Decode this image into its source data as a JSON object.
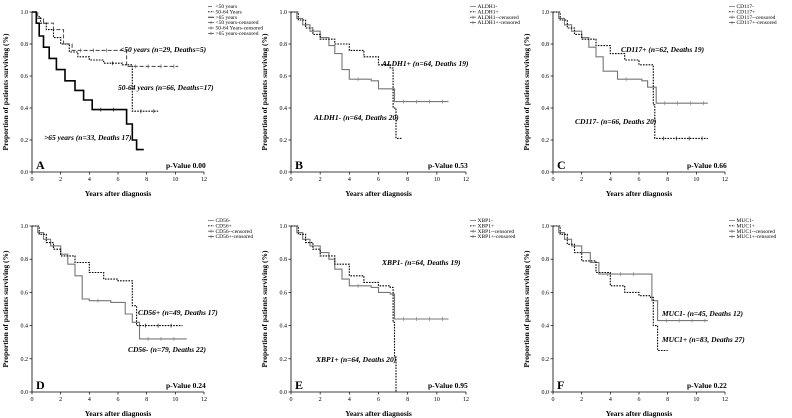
{
  "figure": {
    "panels": [
      {
        "letter": "A",
        "pvalue": "p-Value 0.00",
        "ylabel": "Proportion of patients surviving (%)",
        "xlabel": "Years after diagnosis",
        "legend": [
          "<50 years",
          "50-64 Years",
          ">65 years",
          "<50 years-censored",
          "50-64 Years-censored",
          ">65 years-censored"
        ],
        "annotations": [
          "<50 years (n=29, Deaths=5)",
          "50-64 years (n=66, Deaths=17)",
          ">65 years (n=33, Deaths 17)"
        ]
      },
      {
        "letter": "B",
        "pvalue": "p-Value 0.53",
        "ylabel": "Proportion of patients surviving (%)",
        "xlabel": "Years after diagnosis",
        "legend": [
          "ALDH1-",
          "ALDH1+",
          "ALDH1--censored",
          "ALDH1+-censored"
        ],
        "annotations": [
          "ALDH1+ (n=64, Deaths 19)",
          "ALDH1- (n=64, Deaths 20)"
        ]
      },
      {
        "letter": "C",
        "pvalue": "p-Value 0.66",
        "ylabel": "Proportion of patients surviving (%)",
        "xlabel": "Years after diagnosis",
        "legend": [
          "CD117-",
          "CD117+",
          "CD117--censored",
          "CD117+-censored"
        ],
        "annotations": [
          "CD117+ (n=62, Deaths 19)",
          "CD117- (n=66, Deaths 20)"
        ]
      },
      {
        "letter": "D",
        "pvalue": "p-Value 0.24",
        "ylabel": "Proportion of patients surviving (%)",
        "xlabel": "Years after diagnosis",
        "legend": [
          "CD56-",
          "CD56+",
          "CD56--censored",
          "CD56+-censored"
        ],
        "annotations": [
          "CD56+ (n=49, Deaths 17)",
          "CD56- (n=79, Deaths 22)"
        ]
      },
      {
        "letter": "E",
        "pvalue": "p-Value 0.95",
        "ylabel": "Proportion of patients surviving (%)",
        "xlabel": "Years after diagnosis",
        "legend": [
          "XBP1-",
          "XBP1+",
          "XBP1--censored",
          "XBP1+-censored"
        ],
        "annotations": [
          "XBP1- (n=64, Deaths 19)",
          "XBP1+ (n=64, Deaths 20)"
        ]
      },
      {
        "letter": "F",
        "pvalue": "p-Value 0.22",
        "ylabel": "Proportion of patients surviving (%)",
        "xlabel": "Years after diagnosis",
        "legend": [
          "MUC1-",
          "MUC1+",
          "MUC1--censored",
          "MUC1+-censored"
        ],
        "annotations": [
          "MUC1- (n=45, Deaths 12)",
          "MUC1+ (n=83, Deaths 27)"
        ]
      }
    ]
  },
  "chart_data": [
    {
      "type": "line",
      "xlim": [
        0,
        12
      ],
      "ylim": [
        0,
        1.0
      ],
      "grid": false,
      "legend_position": "top-right",
      "xticks": [
        0,
        2,
        4,
        6,
        8,
        10,
        12
      ],
      "yticks": [
        0,
        0.2,
        0.4,
        0.6,
        0.8,
        1.0
      ],
      "series": [
        {
          "name": "<50 years",
          "style": "dashed",
          "color": "#555555",
          "points": [
            [
              0,
              1.0
            ],
            [
              0.4,
              0.96
            ],
            [
              0.8,
              0.93
            ],
            [
              1.5,
              0.89
            ],
            [
              2.2,
              0.8
            ],
            [
              2.8,
              0.76
            ],
            [
              6.2,
              0.76
            ],
            [
              6.6,
              0.66
            ],
            [
              10.2,
              0.66
            ]
          ]
        },
        {
          "name": "50-64 Years",
          "style": "dotted",
          "color": "#000000",
          "points": [
            [
              0,
              1.0
            ],
            [
              0.3,
              0.97
            ],
            [
              0.6,
              0.93
            ],
            [
              1.0,
              0.89
            ],
            [
              1.5,
              0.84
            ],
            [
              2.0,
              0.8
            ],
            [
              2.6,
              0.75
            ],
            [
              3.2,
              0.72
            ],
            [
              4.0,
              0.7
            ],
            [
              5.0,
              0.68
            ],
            [
              6.3,
              0.67
            ],
            [
              6.9,
              0.67
            ],
            [
              7.0,
              0.38
            ],
            [
              8.8,
              0.38
            ]
          ]
        },
        {
          "name": ">65 years",
          "style": "solid",
          "color": "#000000",
          "points": [
            [
              0,
              1.0
            ],
            [
              0.3,
              0.93
            ],
            [
              0.5,
              0.85
            ],
            [
              0.8,
              0.78
            ],
            [
              1.2,
              0.71
            ],
            [
              1.7,
              0.64
            ],
            [
              2.3,
              0.57
            ],
            [
              3.0,
              0.51
            ],
            [
              3.6,
              0.45
            ],
            [
              4.2,
              0.39
            ],
            [
              6.2,
              0.39
            ],
            [
              6.6,
              0.3
            ],
            [
              7.0,
              0.2
            ],
            [
              7.3,
              0.14
            ],
            [
              7.8,
              0.14
            ]
          ]
        }
      ]
    },
    {
      "type": "line",
      "xlim": [
        0,
        12
      ],
      "ylim": [
        0,
        1.0
      ],
      "grid": false,
      "legend_position": "top-right",
      "xticks": [
        0,
        2,
        4,
        6,
        8,
        10,
        12
      ],
      "yticks": [
        0,
        0.2,
        0.4,
        0.6,
        0.8,
        1.0
      ],
      "series": [
        {
          "name": "ALDH1-",
          "style": "solid",
          "color": "#777777",
          "points": [
            [
              0,
              1.0
            ],
            [
              0.4,
              0.96
            ],
            [
              0.8,
              0.92
            ],
            [
              1.3,
              0.88
            ],
            [
              2.0,
              0.84
            ],
            [
              2.6,
              0.79
            ],
            [
              3.0,
              0.74
            ],
            [
              3.5,
              0.64
            ],
            [
              4.0,
              0.58
            ],
            [
              5.5,
              0.57
            ],
            [
              6.0,
              0.52
            ],
            [
              6.7,
              0.52
            ],
            [
              7.1,
              0.44
            ],
            [
              10.8,
              0.44
            ]
          ]
        },
        {
          "name": "ALDH1+",
          "style": "dotted",
          "color": "#000000",
          "points": [
            [
              0,
              1.0
            ],
            [
              0.5,
              0.95
            ],
            [
              1.0,
              0.9
            ],
            [
              1.5,
              0.86
            ],
            [
              2.0,
              0.83
            ],
            [
              3.0,
              0.8
            ],
            [
              4.0,
              0.76
            ],
            [
              5.0,
              0.72
            ],
            [
              6.0,
              0.67
            ],
            [
              6.8,
              0.65
            ],
            [
              7.0,
              0.4
            ],
            [
              7.2,
              0.21
            ],
            [
              7.6,
              0.21
            ]
          ]
        }
      ]
    },
    {
      "type": "line",
      "xlim": [
        0,
        12
      ],
      "ylim": [
        0,
        1.0
      ],
      "grid": false,
      "legend_position": "top-right",
      "xticks": [
        0,
        2,
        4,
        6,
        8,
        10,
        12
      ],
      "yticks": [
        0,
        0.2,
        0.4,
        0.6,
        0.8,
        1.0
      ],
      "series": [
        {
          "name": "CD117-",
          "style": "solid",
          "color": "#777777",
          "points": [
            [
              0,
              1.0
            ],
            [
              0.4,
              0.96
            ],
            [
              0.8,
              0.92
            ],
            [
              1.3,
              0.88
            ],
            [
              2.0,
              0.84
            ],
            [
              2.5,
              0.78
            ],
            [
              3.0,
              0.72
            ],
            [
              3.5,
              0.63
            ],
            [
              4.5,
              0.58
            ],
            [
              6.2,
              0.57
            ],
            [
              6.6,
              0.53
            ],
            [
              7.2,
              0.43
            ],
            [
              10.8,
              0.43
            ]
          ]
        },
        {
          "name": "CD117+",
          "style": "dotted",
          "color": "#000000",
          "points": [
            [
              0,
              1.0
            ],
            [
              0.5,
              0.95
            ],
            [
              1.0,
              0.9
            ],
            [
              1.5,
              0.86
            ],
            [
              2.0,
              0.83
            ],
            [
              3.0,
              0.79
            ],
            [
              4.0,
              0.74
            ],
            [
              5.0,
              0.7
            ],
            [
              6.0,
              0.67
            ],
            [
              6.8,
              0.67
            ],
            [
              7.0,
              0.42
            ],
            [
              7.1,
              0.21
            ],
            [
              10.8,
              0.21
            ]
          ]
        }
      ]
    },
    {
      "type": "line",
      "xlim": [
        0,
        12
      ],
      "ylim": [
        0,
        1.0
      ],
      "grid": false,
      "legend_position": "top-right",
      "xticks": [
        0,
        2,
        4,
        6,
        8,
        10,
        12
      ],
      "yticks": [
        0,
        0.2,
        0.4,
        0.6,
        0.8,
        1.0
      ],
      "series": [
        {
          "name": "CD56-",
          "style": "solid",
          "color": "#777777",
          "points": [
            [
              0,
              1.0
            ],
            [
              0.4,
              0.96
            ],
            [
              0.8,
              0.92
            ],
            [
              1.3,
              0.88
            ],
            [
              2.0,
              0.83
            ],
            [
              2.5,
              0.77
            ],
            [
              3.0,
              0.7
            ],
            [
              3.5,
              0.56
            ],
            [
              4.0,
              0.55
            ],
            [
              5.5,
              0.54
            ],
            [
              6.5,
              0.47
            ],
            [
              7.0,
              0.42
            ],
            [
              7.5,
              0.32
            ],
            [
              10.8,
              0.32
            ]
          ]
        },
        {
          "name": "CD56+",
          "style": "dotted",
          "color": "#000000",
          "points": [
            [
              0,
              1.0
            ],
            [
              0.5,
              0.95
            ],
            [
              1.0,
              0.9
            ],
            [
              1.5,
              0.86
            ],
            [
              2.0,
              0.82
            ],
            [
              3.0,
              0.78
            ],
            [
              4.0,
              0.72
            ],
            [
              5.0,
              0.68
            ],
            [
              6.0,
              0.67
            ],
            [
              6.8,
              0.67
            ],
            [
              7.0,
              0.52
            ],
            [
              7.3,
              0.4
            ],
            [
              10.5,
              0.4
            ]
          ]
        }
      ]
    },
    {
      "type": "line",
      "xlim": [
        0,
        12
      ],
      "ylim": [
        0,
        1.0
      ],
      "grid": false,
      "legend_position": "top-right",
      "xticks": [
        0,
        2,
        4,
        6,
        8,
        10,
        12
      ],
      "yticks": [
        0,
        0.2,
        0.4,
        0.6,
        0.8,
        1.0
      ],
      "series": [
        {
          "name": "XBP1-",
          "style": "solid",
          "color": "#777777",
          "points": [
            [
              0,
              1.0
            ],
            [
              0.4,
              0.96
            ],
            [
              0.8,
              0.92
            ],
            [
              1.3,
              0.88
            ],
            [
              2.0,
              0.84
            ],
            [
              2.6,
              0.8
            ],
            [
              3.0,
              0.74
            ],
            [
              3.5,
              0.68
            ],
            [
              4.0,
              0.64
            ],
            [
              5.5,
              0.63
            ],
            [
              6.0,
              0.6
            ],
            [
              6.8,
              0.59
            ],
            [
              7.1,
              0.44
            ],
            [
              10.8,
              0.44
            ]
          ]
        },
        {
          "name": "XBP1+",
          "style": "dotted",
          "color": "#000000",
          "points": [
            [
              0,
              1.0
            ],
            [
              0.5,
              0.95
            ],
            [
              1.0,
              0.9
            ],
            [
              1.5,
              0.86
            ],
            [
              2.0,
              0.82
            ],
            [
              3.0,
              0.77
            ],
            [
              4.0,
              0.7
            ],
            [
              5.0,
              0.66
            ],
            [
              6.0,
              0.64
            ],
            [
              6.8,
              0.63
            ],
            [
              7.0,
              0.42
            ],
            [
              7.1,
              0.21
            ],
            [
              7.2,
              0.0
            ]
          ]
        }
      ]
    },
    {
      "type": "line",
      "xlim": [
        0,
        12
      ],
      "ylim": [
        0,
        1.0
      ],
      "grid": false,
      "legend_position": "top-right",
      "xticks": [
        0,
        2,
        4,
        6,
        8,
        10,
        12
      ],
      "yticks": [
        0,
        0.2,
        0.4,
        0.6,
        0.8,
        1.0
      ],
      "series": [
        {
          "name": "MUC1-",
          "style": "solid",
          "color": "#777777",
          "points": [
            [
              0,
              1.0
            ],
            [
              0.4,
              0.96
            ],
            [
              0.8,
              0.92
            ],
            [
              1.3,
              0.88
            ],
            [
              2.0,
              0.84
            ],
            [
              2.6,
              0.78
            ],
            [
              3.2,
              0.71
            ],
            [
              6.6,
              0.71
            ],
            [
              6.9,
              0.55
            ],
            [
              7.3,
              0.43
            ],
            [
              10.8,
              0.43
            ]
          ]
        },
        {
          "name": "MUC1+",
          "style": "dotted",
          "color": "#000000",
          "points": [
            [
              0,
              1.0
            ],
            [
              0.5,
              0.95
            ],
            [
              1.0,
              0.89
            ],
            [
              1.5,
              0.84
            ],
            [
              2.0,
              0.79
            ],
            [
              3.0,
              0.72
            ],
            [
              4.0,
              0.64
            ],
            [
              5.0,
              0.6
            ],
            [
              6.0,
              0.58
            ],
            [
              6.8,
              0.57
            ],
            [
              7.0,
              0.4
            ],
            [
              7.3,
              0.25
            ],
            [
              8.0,
              0.25
            ]
          ]
        }
      ]
    }
  ]
}
